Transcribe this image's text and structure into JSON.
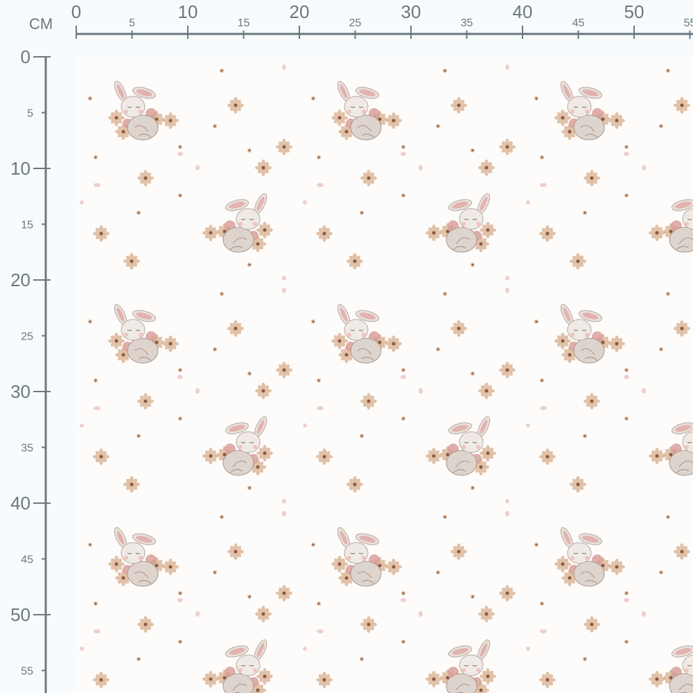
{
  "ruler": {
    "unit": "CM",
    "top_labels": [
      "0",
      "5",
      "10",
      "15",
      "20",
      "25",
      "30",
      "35",
      "40",
      "45",
      "50",
      "55"
    ],
    "left_labels": [
      "0",
      "5",
      "10",
      "15",
      "20",
      "25",
      "30",
      "35",
      "40",
      "45",
      "50",
      "55"
    ],
    "color": "#6b7780"
  },
  "fabric": {
    "pattern": "sleeping bunnies with blush flowers, brick repeat",
    "background": "#fdfcfb",
    "colors": {
      "bunny": "#e8e1dc",
      "ear_inner": "#e2b3ae",
      "flower": "#dcb79a",
      "flower_pink": "#d99a94",
      "center": "#8a5a40"
    }
  }
}
